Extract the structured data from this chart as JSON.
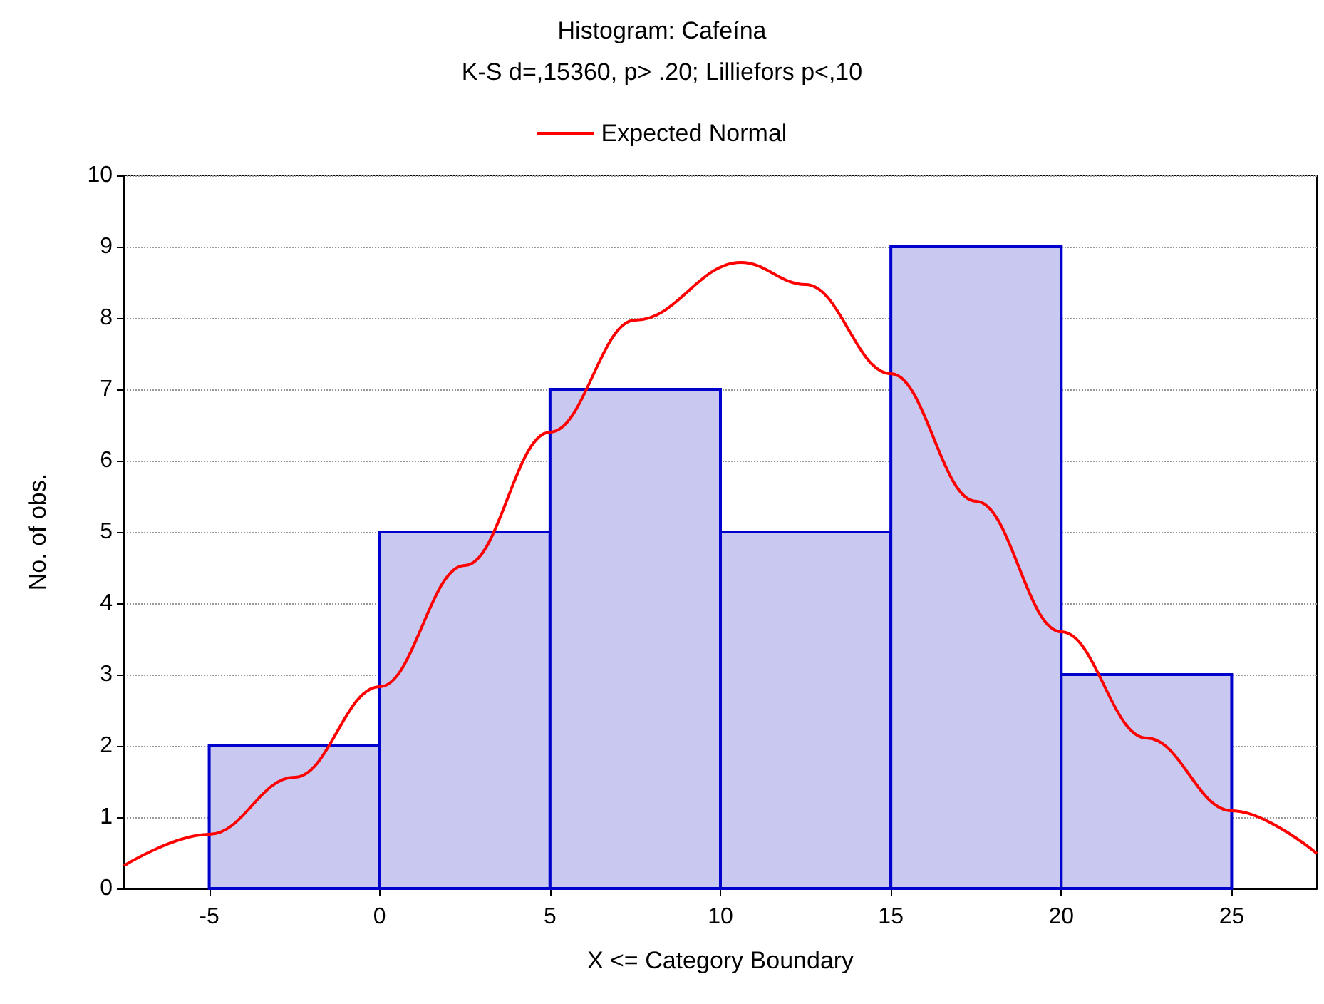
{
  "chart_data": {
    "type": "histogram",
    "title": "Histogram: Cafeína",
    "subtitle": "K-S d=,15360, p> .20; Lilliefors p<,10",
    "xlabel": "X <= Category Boundary",
    "ylabel": "No. of obs.",
    "bins": [
      -5,
      0,
      5,
      10,
      15,
      20,
      25
    ],
    "values": [
      2,
      5,
      7,
      5,
      9,
      3
    ],
    "color": "#c8c8f0",
    "series": [
      {
        "type": "line",
        "name": "Expected Normal",
        "color": "#ff0000",
        "x": [
          -7.5,
          -5,
          -2.5,
          0,
          2.5,
          5,
          7.5,
          10.6,
          12.5,
          15,
          17.5,
          20,
          22.5,
          25,
          27.5
        ],
        "values": [
          0.32,
          0.76,
          1.56,
          2.83,
          4.53,
          6.4,
          7.97,
          8.78,
          8.47,
          7.22,
          5.43,
          3.6,
          2.11,
          1.09,
          0.49
        ]
      }
    ],
    "xlim": [
      -7.5,
      27.5
    ],
    "xticks": [
      -5,
      0,
      5,
      10,
      15,
      20,
      25
    ],
    "ylim": [
      0,
      10
    ],
    "yticks": [
      0,
      1,
      2,
      3,
      4,
      5,
      6,
      7,
      8,
      9,
      10
    ],
    "grid": "y",
    "legend": "top"
  }
}
